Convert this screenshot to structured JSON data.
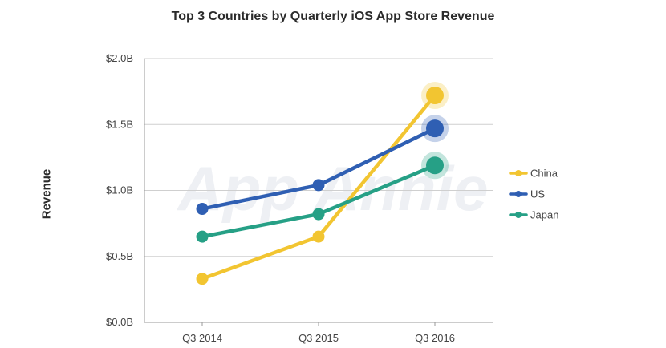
{
  "chart_data": {
    "type": "line",
    "title": "Top 3 Countries by Quarterly iOS App Store Revenue",
    "xlabel": "",
    "ylabel": "Revenue",
    "categories": [
      "Q3 2014",
      "Q3 2015",
      "Q3 2016"
    ],
    "y_ticks": [
      "$0.0B",
      "$0.5B",
      "$1.0B",
      "$1.5B",
      "$2.0B"
    ],
    "y_tick_values": [
      0,
      0.5,
      1.0,
      1.5,
      2.0
    ],
    "ylim": [
      0,
      2.0
    ],
    "grid": true,
    "legend_position": "right",
    "series": [
      {
        "name": "China",
        "color": "#f2c531",
        "values": [
          0.33,
          0.65,
          1.72
        ]
      },
      {
        "name": "US",
        "color": "#2f5fb3",
        "values": [
          0.86,
          1.04,
          1.47
        ]
      },
      {
        "name": "Japan",
        "color": "#26a086",
        "values": [
          0.65,
          0.82,
          1.19
        ]
      }
    ],
    "watermark": "App Annie"
  }
}
